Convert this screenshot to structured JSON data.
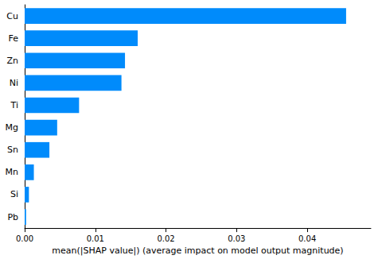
{
  "chart_data": {
    "type": "bar",
    "orientation": "horizontal",
    "x_label": "mean(|SHAP value|) (average impact on model output magnitude)",
    "categories": [
      "Cu",
      "Fe",
      "Zn",
      "Ni",
      "Ti",
      "Mg",
      "Sn",
      "Mn",
      "Si",
      "Pb"
    ],
    "values": [
      0.0455,
      0.016,
      0.0142,
      0.0137,
      0.0077,
      0.0046,
      0.0035,
      0.0013,
      0.0006,
      0.0002
    ],
    "color": "#008bfb",
    "xlim": [
      0,
      0.049
    ],
    "xticks": [
      {
        "value": 0,
        "label": "0.00"
      },
      {
        "value": 0.01,
        "label": "0.01"
      },
      {
        "value": 0.02,
        "label": "0.02"
      },
      {
        "value": 0.03,
        "label": "0.03"
      },
      {
        "value": 0.04,
        "label": "0.04"
      }
    ],
    "grid": false
  }
}
